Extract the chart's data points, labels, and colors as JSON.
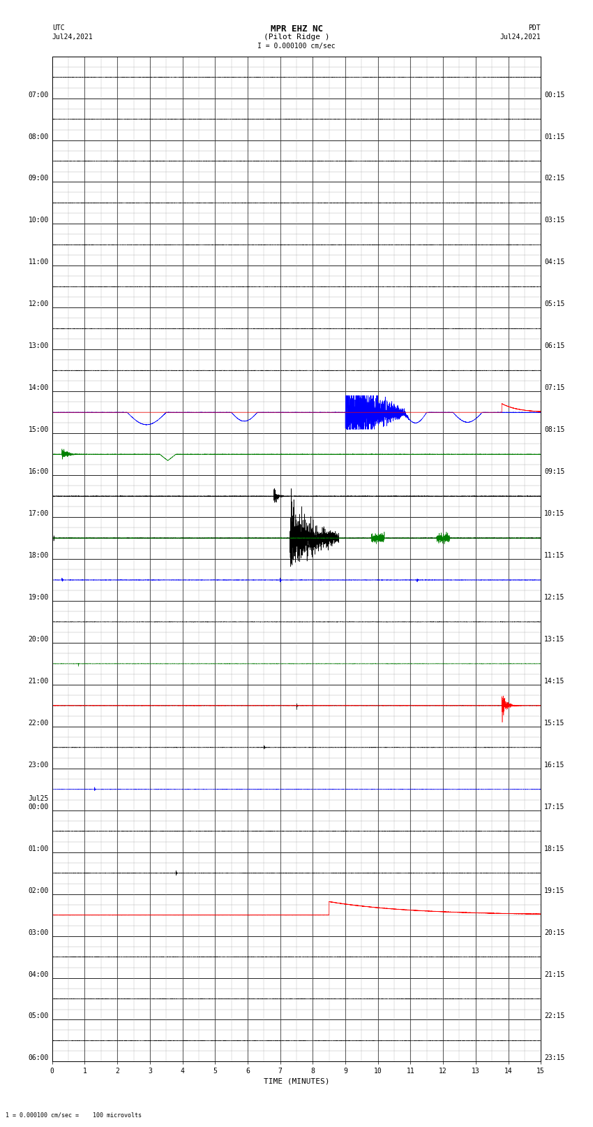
{
  "title_line1": "MPR EHZ NC",
  "title_line2": "(Pilot Ridge )",
  "title_line3": "I = 0.000100 cm/sec",
  "left_label_top": "UTC",
  "left_label_date": "Jul24,2021",
  "right_label_top": "PDT",
  "right_label_date": "Jul24,2021",
  "bottom_label": "TIME (MINUTES)",
  "footnote": "1 = 0.000100 cm/sec =    100 microvolts",
  "utc_labels": [
    "07:00",
    "08:00",
    "09:00",
    "10:00",
    "11:00",
    "12:00",
    "13:00",
    "14:00",
    "15:00",
    "16:00",
    "17:00",
    "18:00",
    "19:00",
    "20:00",
    "21:00",
    "22:00",
    "23:00",
    "Jul25\n00:00",
    "01:00",
    "02:00",
    "03:00",
    "04:00",
    "05:00",
    "06:00"
  ],
  "pdt_labels": [
    "00:15",
    "01:15",
    "02:15",
    "03:15",
    "04:15",
    "05:15",
    "06:15",
    "07:15",
    "08:15",
    "09:15",
    "10:15",
    "11:15",
    "12:15",
    "13:15",
    "14:15",
    "15:15",
    "16:15",
    "17:15",
    "18:15",
    "19:15",
    "20:15",
    "21:15",
    "22:15",
    "23:15"
  ],
  "num_rows": 24,
  "x_min": 0,
  "x_max": 15,
  "bg_color": "#ffffff",
  "grid_color": "#aaaaaa",
  "row_border_color": "#000000",
  "title_fontsize": 8,
  "label_fontsize": 7,
  "tick_fontsize": 7
}
